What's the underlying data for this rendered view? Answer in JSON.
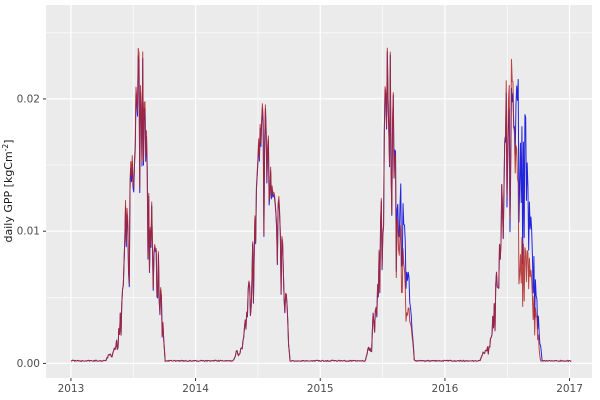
{
  "chart_data": {
    "type": "line",
    "title": "",
    "xlabel": "",
    "ylabel": "daily GPP [kgCm^-2]",
    "ylabel_parts": {
      "prefix": "daily GPP [kgCm",
      "superscript": "-2",
      "suffix": "]"
    },
    "x_ticks": [
      "2013",
      "2014",
      "2015",
      "2016",
      "2017"
    ],
    "x_tick_years": [
      2013,
      2014,
      2015,
      2016,
      2017
    ],
    "x_minor_years": [
      2013.5,
      2014.5,
      2015.5,
      2016.5
    ],
    "y_ticks": [
      "0.00",
      "0.01",
      "0.02"
    ],
    "y_tick_values": [
      0.0,
      0.01,
      0.02
    ],
    "y_minor_values": [
      0.005,
      0.015,
      0.025
    ],
    "xlim": [
      2012.8,
      2017.18
    ],
    "ylim": [
      -0.0011,
      0.0271
    ],
    "grid": true,
    "legend": "none",
    "panel_bg": "#ebebeb",
    "grid_color": "#ffffff",
    "tick_color": "#333333",
    "tick_label_color": "#4d4d4d",
    "noise": {
      "step_years": 0.006,
      "drop_max": 0.55,
      "drop_exponent": 2.2,
      "jitter": 0.06
    },
    "series": [
      {
        "name": "series-blue",
        "color": "#2424dd",
        "opacity": 1,
        "envelope": [
          [
            2013.0,
            0.0002
          ],
          [
            2013.28,
            0.0002
          ],
          [
            2013.31,
            0.0008
          ],
          [
            2013.33,
            0.0005
          ],
          [
            2013.36,
            0.0015
          ],
          [
            2013.39,
            0.003
          ],
          [
            2013.42,
            0.007
          ],
          [
            2013.44,
            0.0125
          ],
          [
            2013.46,
            0.0105
          ],
          [
            2013.49,
            0.0165
          ],
          [
            2013.52,
            0.0205
          ],
          [
            2013.555,
            0.0252
          ],
          [
            2013.58,
            0.024
          ],
          [
            2013.6,
            0.0185
          ],
          [
            2013.62,
            0.0128
          ],
          [
            2013.645,
            0.0122
          ],
          [
            2013.665,
            0.0098
          ],
          [
            2013.685,
            0.0108
          ],
          [
            2013.7,
            0.0083
          ],
          [
            2013.72,
            0.0058
          ],
          [
            2013.74,
            0.0034
          ],
          [
            2013.755,
            0.0002
          ],
          [
            2014.0,
            0.0002
          ],
          [
            2014.3,
            0.0002
          ],
          [
            2014.33,
            0.0009
          ],
          [
            2014.35,
            0.0006
          ],
          [
            2014.38,
            0.0018
          ],
          [
            2014.41,
            0.0044
          ],
          [
            2014.44,
            0.0074
          ],
          [
            2014.47,
            0.0098
          ],
          [
            2014.5,
            0.0157
          ],
          [
            2014.53,
            0.0192
          ],
          [
            2014.55,
            0.02
          ],
          [
            2014.58,
            0.0177
          ],
          [
            2014.6,
            0.0152
          ],
          [
            2014.63,
            0.0128
          ],
          [
            2014.655,
            0.0108
          ],
          [
            2014.675,
            0.0132
          ],
          [
            2014.7,
            0.0088
          ],
          [
            2014.72,
            0.0064
          ],
          [
            2014.74,
            0.0039
          ],
          [
            2014.755,
            0.0002
          ],
          [
            2015.0,
            0.0002
          ],
          [
            2015.36,
            0.0002
          ],
          [
            2015.39,
            0.0012
          ],
          [
            2015.41,
            0.0008
          ],
          [
            2015.43,
            0.005
          ],
          [
            2015.45,
            0.0044
          ],
          [
            2015.475,
            0.0088
          ],
          [
            2015.5,
            0.0148
          ],
          [
            2015.52,
            0.0208
          ],
          [
            2015.545,
            0.0253
          ],
          [
            2015.57,
            0.0238
          ],
          [
            2015.59,
            0.0208
          ],
          [
            2015.61,
            0.015
          ],
          [
            2015.63,
            0.0136
          ],
          [
            2015.655,
            0.0135
          ],
          [
            2015.675,
            0.0112
          ],
          [
            2015.695,
            0.0086
          ],
          [
            2015.715,
            0.006
          ],
          [
            2015.735,
            0.003
          ],
          [
            2015.755,
            0.0002
          ],
          [
            2016.0,
            0.0002
          ],
          [
            2016.28,
            0.0002
          ],
          [
            2016.31,
            0.0008
          ],
          [
            2016.34,
            0.0012
          ],
          [
            2016.37,
            0.0025
          ],
          [
            2016.4,
            0.005
          ],
          [
            2016.43,
            0.009
          ],
          [
            2016.455,
            0.013
          ],
          [
            2016.48,
            0.0188
          ],
          [
            2016.51,
            0.0228
          ],
          [
            2016.535,
            0.0208
          ],
          [
            2016.56,
            0.0198
          ],
          [
            2016.585,
            0.0208
          ],
          [
            2016.6,
            0.0233
          ],
          [
            2016.625,
            0.016
          ],
          [
            2016.648,
            0.0192
          ],
          [
            2016.67,
            0.013
          ],
          [
            2016.7,
            0.01
          ],
          [
            2016.73,
            0.006
          ],
          [
            2016.755,
            0.003
          ],
          [
            2016.78,
            0.0002
          ],
          [
            2017.02,
            0.0002
          ]
        ]
      },
      {
        "name": "series-red",
        "color": "#b22626",
        "opacity": 0.85,
        "envelope": [
          [
            2013.0,
            0.0002
          ],
          [
            2013.28,
            0.0002
          ],
          [
            2013.31,
            0.0008
          ],
          [
            2013.33,
            0.0005
          ],
          [
            2013.36,
            0.0015
          ],
          [
            2013.39,
            0.003
          ],
          [
            2013.42,
            0.007
          ],
          [
            2013.44,
            0.013
          ],
          [
            2013.46,
            0.011
          ],
          [
            2013.49,
            0.017
          ],
          [
            2013.52,
            0.021
          ],
          [
            2013.555,
            0.0258
          ],
          [
            2013.58,
            0.0245
          ],
          [
            2013.6,
            0.019
          ],
          [
            2013.62,
            0.013
          ],
          [
            2013.645,
            0.0125
          ],
          [
            2013.665,
            0.01
          ],
          [
            2013.685,
            0.011
          ],
          [
            2013.7,
            0.0085
          ],
          [
            2013.72,
            0.006
          ],
          [
            2013.74,
            0.0035
          ],
          [
            2013.755,
            0.0002
          ],
          [
            2014.0,
            0.0002
          ],
          [
            2014.3,
            0.0002
          ],
          [
            2014.33,
            0.0009
          ],
          [
            2014.35,
            0.0006
          ],
          [
            2014.38,
            0.0018
          ],
          [
            2014.41,
            0.0045
          ],
          [
            2014.44,
            0.0075
          ],
          [
            2014.47,
            0.01
          ],
          [
            2014.5,
            0.016
          ],
          [
            2014.53,
            0.0195
          ],
          [
            2014.55,
            0.0203
          ],
          [
            2014.58,
            0.018
          ],
          [
            2014.6,
            0.0155
          ],
          [
            2014.63,
            0.013
          ],
          [
            2014.655,
            0.011
          ],
          [
            2014.675,
            0.0135
          ],
          [
            2014.7,
            0.009
          ],
          [
            2014.72,
            0.0065
          ],
          [
            2014.74,
            0.004
          ],
          [
            2014.755,
            0.0002
          ],
          [
            2015.0,
            0.0002
          ],
          [
            2015.36,
            0.0002
          ],
          [
            2015.39,
            0.0012
          ],
          [
            2015.41,
            0.0008
          ],
          [
            2015.43,
            0.005
          ],
          [
            2015.45,
            0.0045
          ],
          [
            2015.475,
            0.009
          ],
          [
            2015.5,
            0.015
          ],
          [
            2015.52,
            0.021
          ],
          [
            2015.545,
            0.0256
          ],
          [
            2015.57,
            0.024
          ],
          [
            2015.59,
            0.021
          ],
          [
            2015.61,
            0.014
          ],
          [
            2015.63,
            0.012
          ],
          [
            2015.65,
            0.01
          ],
          [
            2015.67,
            0.0085
          ],
          [
            2015.69,
            0.005
          ],
          [
            2015.715,
            0.004
          ],
          [
            2015.735,
            0.0025
          ],
          [
            2015.755,
            0.0002
          ],
          [
            2016.0,
            0.0002
          ],
          [
            2016.28,
            0.0002
          ],
          [
            2016.31,
            0.0008
          ],
          [
            2016.34,
            0.0012
          ],
          [
            2016.37,
            0.0025
          ],
          [
            2016.4,
            0.005
          ],
          [
            2016.43,
            0.009
          ],
          [
            2016.455,
            0.013
          ],
          [
            2016.48,
            0.019
          ],
          [
            2016.51,
            0.0248
          ],
          [
            2016.535,
            0.023
          ],
          [
            2016.56,
            0.019
          ],
          [
            2016.585,
            0.014
          ],
          [
            2016.61,
            0.01
          ],
          [
            2016.64,
            0.0085
          ],
          [
            2016.665,
            0.009
          ],
          [
            2016.69,
            0.007
          ],
          [
            2016.715,
            0.005
          ],
          [
            2016.74,
            0.0035
          ],
          [
            2016.765,
            0.0002
          ],
          [
            2017.02,
            0.0002
          ]
        ]
      }
    ]
  }
}
